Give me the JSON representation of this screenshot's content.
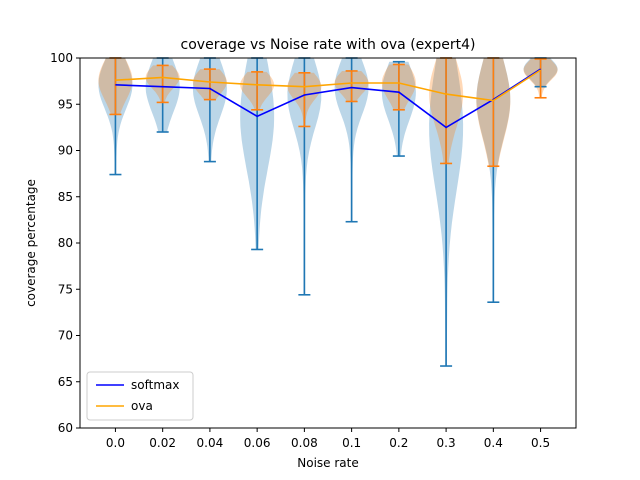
{
  "chart_data": {
    "type": "line",
    "title": "coverage vs Noise rate with ova (expert4)",
    "xlabel": "Noise rate",
    "ylabel": "coverage percentage",
    "categories": [
      "0.0",
      "0.02",
      "0.04",
      "0.06",
      "0.08",
      "0.1",
      "0.2",
      "0.3",
      "0.4",
      "0.5"
    ],
    "ylim": [
      60,
      100
    ],
    "yticks": [
      60,
      65,
      70,
      75,
      80,
      85,
      90,
      95,
      100
    ],
    "grid": false,
    "legend_position": "lower-left",
    "series": [
      {
        "name": "softmax",
        "color": "#0000ff",
        "values": [
          97.1,
          96.9,
          96.7,
          93.7,
          96.0,
          96.8,
          96.3,
          92.5,
          95.5,
          98.8
        ],
        "range": [
          [
            87.4,
            100
          ],
          [
            92.0,
            100
          ],
          [
            88.8,
            100
          ],
          [
            79.3,
            100
          ],
          [
            74.4,
            100
          ],
          [
            82.3,
            100
          ],
          [
            89.4,
            99.6
          ],
          [
            66.7,
            100
          ],
          [
            73.6,
            100
          ],
          [
            96.9,
            100
          ]
        ],
        "violin_color": "#1f77b4"
      },
      {
        "name": "ova",
        "color": "#ffa500",
        "values": [
          97.6,
          97.9,
          97.4,
          97.1,
          96.9,
          97.3,
          97.3,
          96.1,
          95.4,
          98.7
        ],
        "range": [
          [
            93.9,
            100
          ],
          [
            95.2,
            99.2
          ],
          [
            95.5,
            98.8
          ],
          [
            94.4,
            98.5
          ],
          [
            92.6,
            98.4
          ],
          [
            95.3,
            98.6
          ],
          [
            94.4,
            99.3
          ],
          [
            88.6,
            100
          ],
          [
            88.3,
            100
          ],
          [
            95.7,
            99.9
          ]
        ],
        "violin_color": "#ff7f0e"
      }
    ]
  }
}
